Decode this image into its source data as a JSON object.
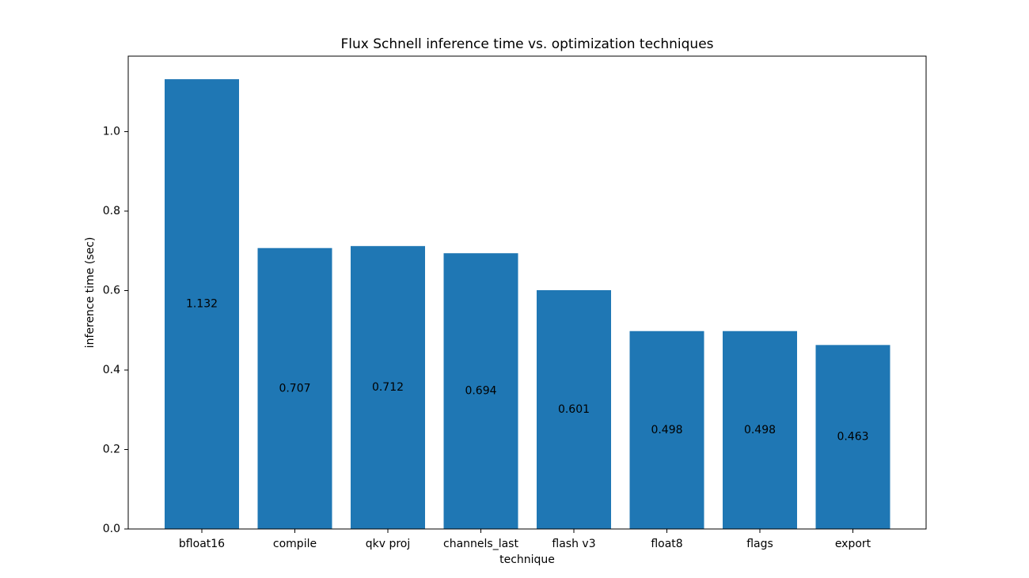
{
  "chart_data": {
    "type": "bar",
    "title": "Flux Schnell inference time vs. optimization techniques",
    "xlabel": "technique",
    "ylabel": "inference time (sec)",
    "categories": [
      "bfloat16",
      "compile",
      "qkv proj",
      "channels_last",
      "flash v3",
      "float8",
      "flags",
      "export"
    ],
    "values": [
      1.132,
      0.707,
      0.712,
      0.694,
      0.601,
      0.498,
      0.498,
      0.463
    ],
    "value_labels": [
      "1.132",
      "0.707",
      "0.712",
      "0.694",
      "0.601",
      "0.498",
      "0.498",
      "0.463"
    ],
    "ylim": [
      0,
      1.19
    ],
    "yticks": [
      0.0,
      0.2,
      0.4,
      0.6,
      0.8,
      1.0
    ],
    "ytick_labels": [
      "0.0",
      "0.2",
      "0.4",
      "0.6",
      "0.8",
      "1.0"
    ],
    "bar_color": "#1f77b4",
    "data_label_position": "center",
    "grid": false,
    "legend": false
  }
}
